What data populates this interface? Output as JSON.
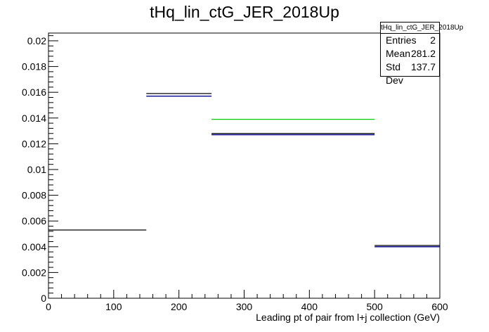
{
  "chart_data": {
    "type": "histogram",
    "title": "tHq_lin_ctG_JER_2018Up",
    "xlabel": "Leading pt of pair from l+j collection (GeV)",
    "ylabel": "",
    "xlim": [
      0,
      600
    ],
    "ylim": [
      0,
      0.0206
    ],
    "xticks": [
      "0",
      "100",
      "200",
      "300",
      "400",
      "500",
      "600"
    ],
    "yticks": [
      "0",
      "0.002",
      "0.004",
      "0.006",
      "0.008",
      "0.01",
      "0.012",
      "0.014",
      "0.016",
      "0.018",
      "0.02"
    ],
    "grid": false,
    "series": [
      {
        "color": "#000000",
        "bins": [
          [
            0,
            150,
            0.0053
          ],
          [
            150,
            250,
            0.0159
          ],
          [
            250,
            500,
            0.0128
          ],
          [
            500,
            600,
            0.0041
          ]
        ]
      },
      {
        "color": "#00008b",
        "bins": [
          [
            150,
            250,
            0.0157
          ],
          [
            250,
            500,
            0.0127
          ],
          [
            500,
            600,
            0.004
          ]
        ]
      },
      {
        "color": "#00cc00",
        "bins": [
          [
            250,
            500,
            0.0139
          ]
        ]
      }
    ],
    "stats": {
      "name": "tHq_lin_ctG_JER_2018Up",
      "rows": [
        {
          "label": "Entries",
          "value": "2"
        },
        {
          "label": "Mean",
          "value": "281.2"
        },
        {
          "label": "Std Dev",
          "value": "137.7"
        }
      ]
    }
  }
}
